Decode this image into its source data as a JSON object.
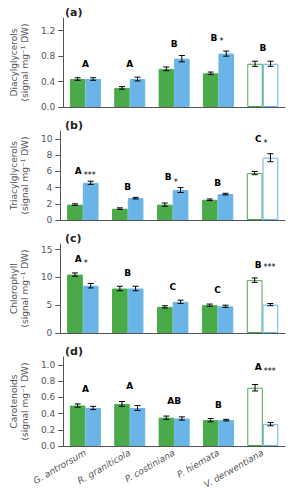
{
  "chart_data": [
    {
      "type": "bar",
      "title": "(a)",
      "categories": [
        null,
        null,
        null,
        null,
        null
      ],
      "ylabel": "Diacylglycerols\n(signal mg⁻¹ DW)",
      "ylim": [
        0,
        1.4
      ],
      "yticks": [
        {
          "value": 0,
          "label": "0.0"
        },
        0.4,
        0.8,
        1.2
      ],
      "grid": false,
      "series": [
        {
          "color": "#4aaa4a",
          "colors": [
            "#4aaa4a",
            "#4aaa4a",
            "#4aaa4a",
            "#4aaa4a",
            "white"
          ],
          "values": [
            0.44,
            0.3,
            0.6,
            0.53,
            0.68
          ],
          "errors": [
            0.02,
            0.02,
            0.03,
            0.02,
            0.04
          ]
        },
        {
          "color": "#6ab4e8",
          "colors": [
            "#6ab4e8",
            "#6ab4e8",
            "#6ab4e8",
            "#6ab4e8",
            "white"
          ],
          "values": [
            0.44,
            0.44,
            0.76,
            0.84,
            0.68
          ],
          "errors": [
            0.02,
            0.03,
            0.05,
            0.04,
            0.04
          ]
        }
      ],
      "annotations": [
        {
          "text": "A",
          "x": 0,
          "y": 0.6
        },
        {
          "text": "A",
          "x": 1,
          "y": 0.6
        },
        {
          "text": "B",
          "x": 2,
          "y": 0.92
        },
        {
          "text": "B",
          "x": 3,
          "y": 1.02
        },
        {
          "text": "B",
          "x": 4,
          "y": 0.85
        },
        {
          "text": "*",
          "x": 3,
          "y": 0.96
        }
      ]
    },
    {
      "type": "bar",
      "title": "(b)",
      "categories": [
        null,
        null,
        null,
        null,
        null
      ],
      "ylabel": "Triacylglycerols\n(signal mg⁻¹ DW)",
      "ylim": [
        0,
        11
      ],
      "yticks": [
        0,
        2,
        4,
        6,
        8,
        10
      ],
      "grid": false,
      "series": [
        {
          "color": "#4aaa4a",
          "colors": [
            "#4aaa4a",
            "#4aaa4a",
            "#4aaa4a",
            "#4aaa4a",
            "white"
          ],
          "values": [
            1.9,
            1.4,
            1.9,
            2.5,
            5.8
          ],
          "errors": [
            0.1,
            0.1,
            0.2,
            0.1,
            0.2
          ]
        },
        {
          "color": "#6ab4e8",
          "colors": [
            "#6ab4e8",
            "#6ab4e8",
            "#6ab4e8",
            "#6ab4e8",
            "white"
          ],
          "values": [
            4.6,
            2.7,
            3.7,
            3.2,
            7.7
          ],
          "errors": [
            0.2,
            0.1,
            0.3,
            0.1,
            0.5
          ]
        }
      ],
      "annotations": [
        {
          "text": "A",
          "x": 0,
          "y": 5.5
        },
        {
          "text": "B",
          "x": 1,
          "y": 3.5
        },
        {
          "text": "B",
          "x": 2,
          "y": 4.7
        },
        {
          "text": "B",
          "x": 3,
          "y": 4.0
        },
        {
          "text": "C",
          "x": 4,
          "y": 9.5
        },
        {
          "text": "***",
          "x": 0,
          "y": 5.0
        },
        {
          "text": "*",
          "x": 2,
          "y": 4.2
        },
        {
          "text": "*",
          "x": 4,
          "y": 8.9
        }
      ]
    },
    {
      "type": "bar",
      "title": "(c)",
      "categories": [
        null,
        null,
        null,
        null,
        null
      ],
      "ylabel": "Chlorophyll\n(signal mg⁻¹ DW)",
      "ylim": [
        0,
        16
      ],
      "yticks": [
        0,
        5,
        10,
        15
      ],
      "grid": false,
      "series": [
        {
          "color": "#4aaa4a",
          "colors": [
            "#4aaa4a",
            "#4aaa4a",
            "#4aaa4a",
            "#4aaa4a",
            "white"
          ],
          "values": [
            10.5,
            8.0,
            4.7,
            5.0,
            9.5
          ],
          "errors": [
            0.3,
            0.4,
            0.2,
            0.2,
            0.4
          ]
        },
        {
          "color": "#6ab4e8",
          "colors": [
            "#6ab4e8",
            "#6ab4e8",
            "#6ab4e8",
            "#6ab4e8",
            "white"
          ],
          "values": [
            8.5,
            8.0,
            5.6,
            4.8,
            5.1
          ],
          "errors": [
            0.4,
            0.4,
            0.3,
            0.2,
            0.2
          ]
        }
      ],
      "annotations": [
        {
          "text": "A",
          "x": 0,
          "y": 12.5
        },
        {
          "text": "B",
          "x": 1,
          "y": 10.0
        },
        {
          "text": "C",
          "x": 2,
          "y": 7.5
        },
        {
          "text": "C",
          "x": 3,
          "y": 7.0
        },
        {
          "text": "B",
          "x": 4,
          "y": 11.5
        },
        {
          "text": "*",
          "x": 0,
          "y": 11.8
        },
        {
          "text": "***",
          "x": 4,
          "y": 11.0
        }
      ]
    },
    {
      "type": "bar",
      "title": "(d)",
      "categories": [
        "G. antrorsum",
        "R. graniticola",
        "P. costiniana",
        "P. hiemata",
        "V. derwentiana"
      ],
      "ylabel": "Carotenoids\n(signal mg⁻¹ DW)",
      "ylim": [
        0,
        1.1
      ],
      "yticks": [
        {
          "value": 0,
          "label": "0.0"
        },
        0.2,
        0.4,
        0.6,
        0.8,
        {
          "value": 1,
          "label": "1.0"
        }
      ],
      "grid": false,
      "series": [
        {
          "color": "#4aaa4a",
          "colors": [
            "#4aaa4a",
            "#4aaa4a",
            "#4aaa4a",
            "#4aaa4a",
            "white"
          ],
          "values": [
            0.5,
            0.52,
            0.35,
            0.32,
            0.72
          ],
          "errors": [
            0.02,
            0.03,
            0.02,
            0.02,
            0.04
          ]
        },
        {
          "color": "#6ab4e8",
          "colors": [
            "#6ab4e8",
            "#6ab4e8",
            "#6ab4e8",
            "#6ab4e8",
            "white"
          ],
          "values": [
            0.47,
            0.47,
            0.34,
            0.32,
            0.27
          ],
          "errors": [
            0.02,
            0.03,
            0.02,
            0.01,
            0.02
          ]
        }
      ],
      "annotations": [
        {
          "text": "A",
          "x": 0,
          "y": 0.65
        },
        {
          "text": "A",
          "x": 1,
          "y": 0.68
        },
        {
          "text": "AB",
          "x": 2,
          "y": 0.5
        },
        {
          "text": "B",
          "x": 3,
          "y": 0.45
        },
        {
          "text": "A",
          "x": 4,
          "y": 0.92
        },
        {
          "text": "***",
          "x": 4,
          "y": 0.87
        }
      ]
    }
  ]
}
